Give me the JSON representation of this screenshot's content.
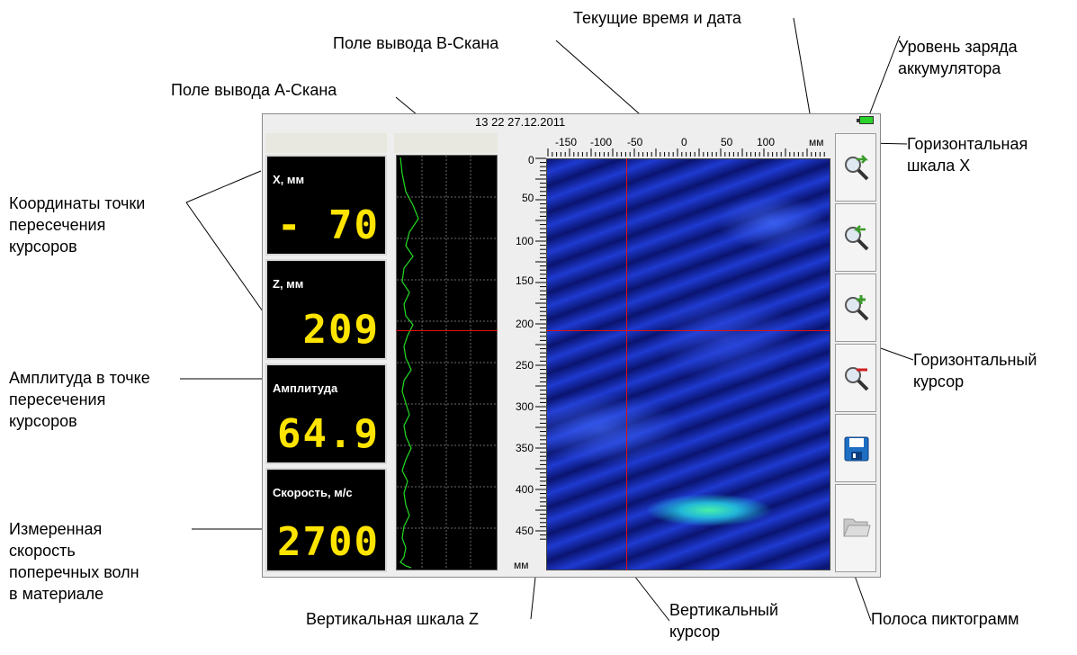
{
  "callouts": {
    "datetime": "Текущие время и дата",
    "battery_line1": "Уровень заряда",
    "battery_line2": "аккумулятора",
    "bscan_field": "Поле вывода В-Скана",
    "ascan_field": "Поле вывода А-Скана",
    "coords_line1": "Координаты точки",
    "coords_line2": "пересечения",
    "coords_line3": "курсоров",
    "amp_line1": "Амплитуда в точке",
    "amp_line2": "пересечения",
    "amp_line3": "курсоров",
    "speed_line1": "Измеренная",
    "speed_line2": "скорость",
    "speed_line3": "поперечных волн",
    "speed_line4": "в материале",
    "hscale_line1": "Горизонтальная",
    "hscale_line2": "шкала Х",
    "hcursor_line1": "Горизонтальный",
    "hcursor_line2": "курсор",
    "vscale": "Вертикальная шкала Z",
    "vcursor_line1": "Вертикальный",
    "vcursor_line2": "курсор",
    "iconbar": "Полоса пиктограмм"
  },
  "status": {
    "datetime": "13 22 27.12.2011"
  },
  "readouts": {
    "x": {
      "label": "X, мм",
      "value": "- 70"
    },
    "z": {
      "label": "Z, мм",
      "value": "209"
    },
    "amp": {
      "label": "Амплитуда",
      "value": "64.9"
    },
    "speed": {
      "label": "Скорость, м/с",
      "value": "2700"
    }
  },
  "scales": {
    "x_ticks": [
      "-150",
      "-100",
      "-50",
      "0",
      "50",
      "100"
    ],
    "x_unit": "мм",
    "z_ticks": [
      "0",
      "50",
      "100",
      "150",
      "200",
      "250",
      "300",
      "350",
      "400",
      "450"
    ],
    "z_unit": "мм"
  },
  "toolbar": {
    "icons": [
      "zoom-right-icon",
      "zoom-left-icon",
      "zoom-in-icon",
      "zoom-out-icon",
      "save-icon",
      "open-folder-icon"
    ]
  },
  "colors": {
    "readout_digits": "#ffe400",
    "cursor": "#e01010",
    "ascan_trace": "#22dd22"
  }
}
